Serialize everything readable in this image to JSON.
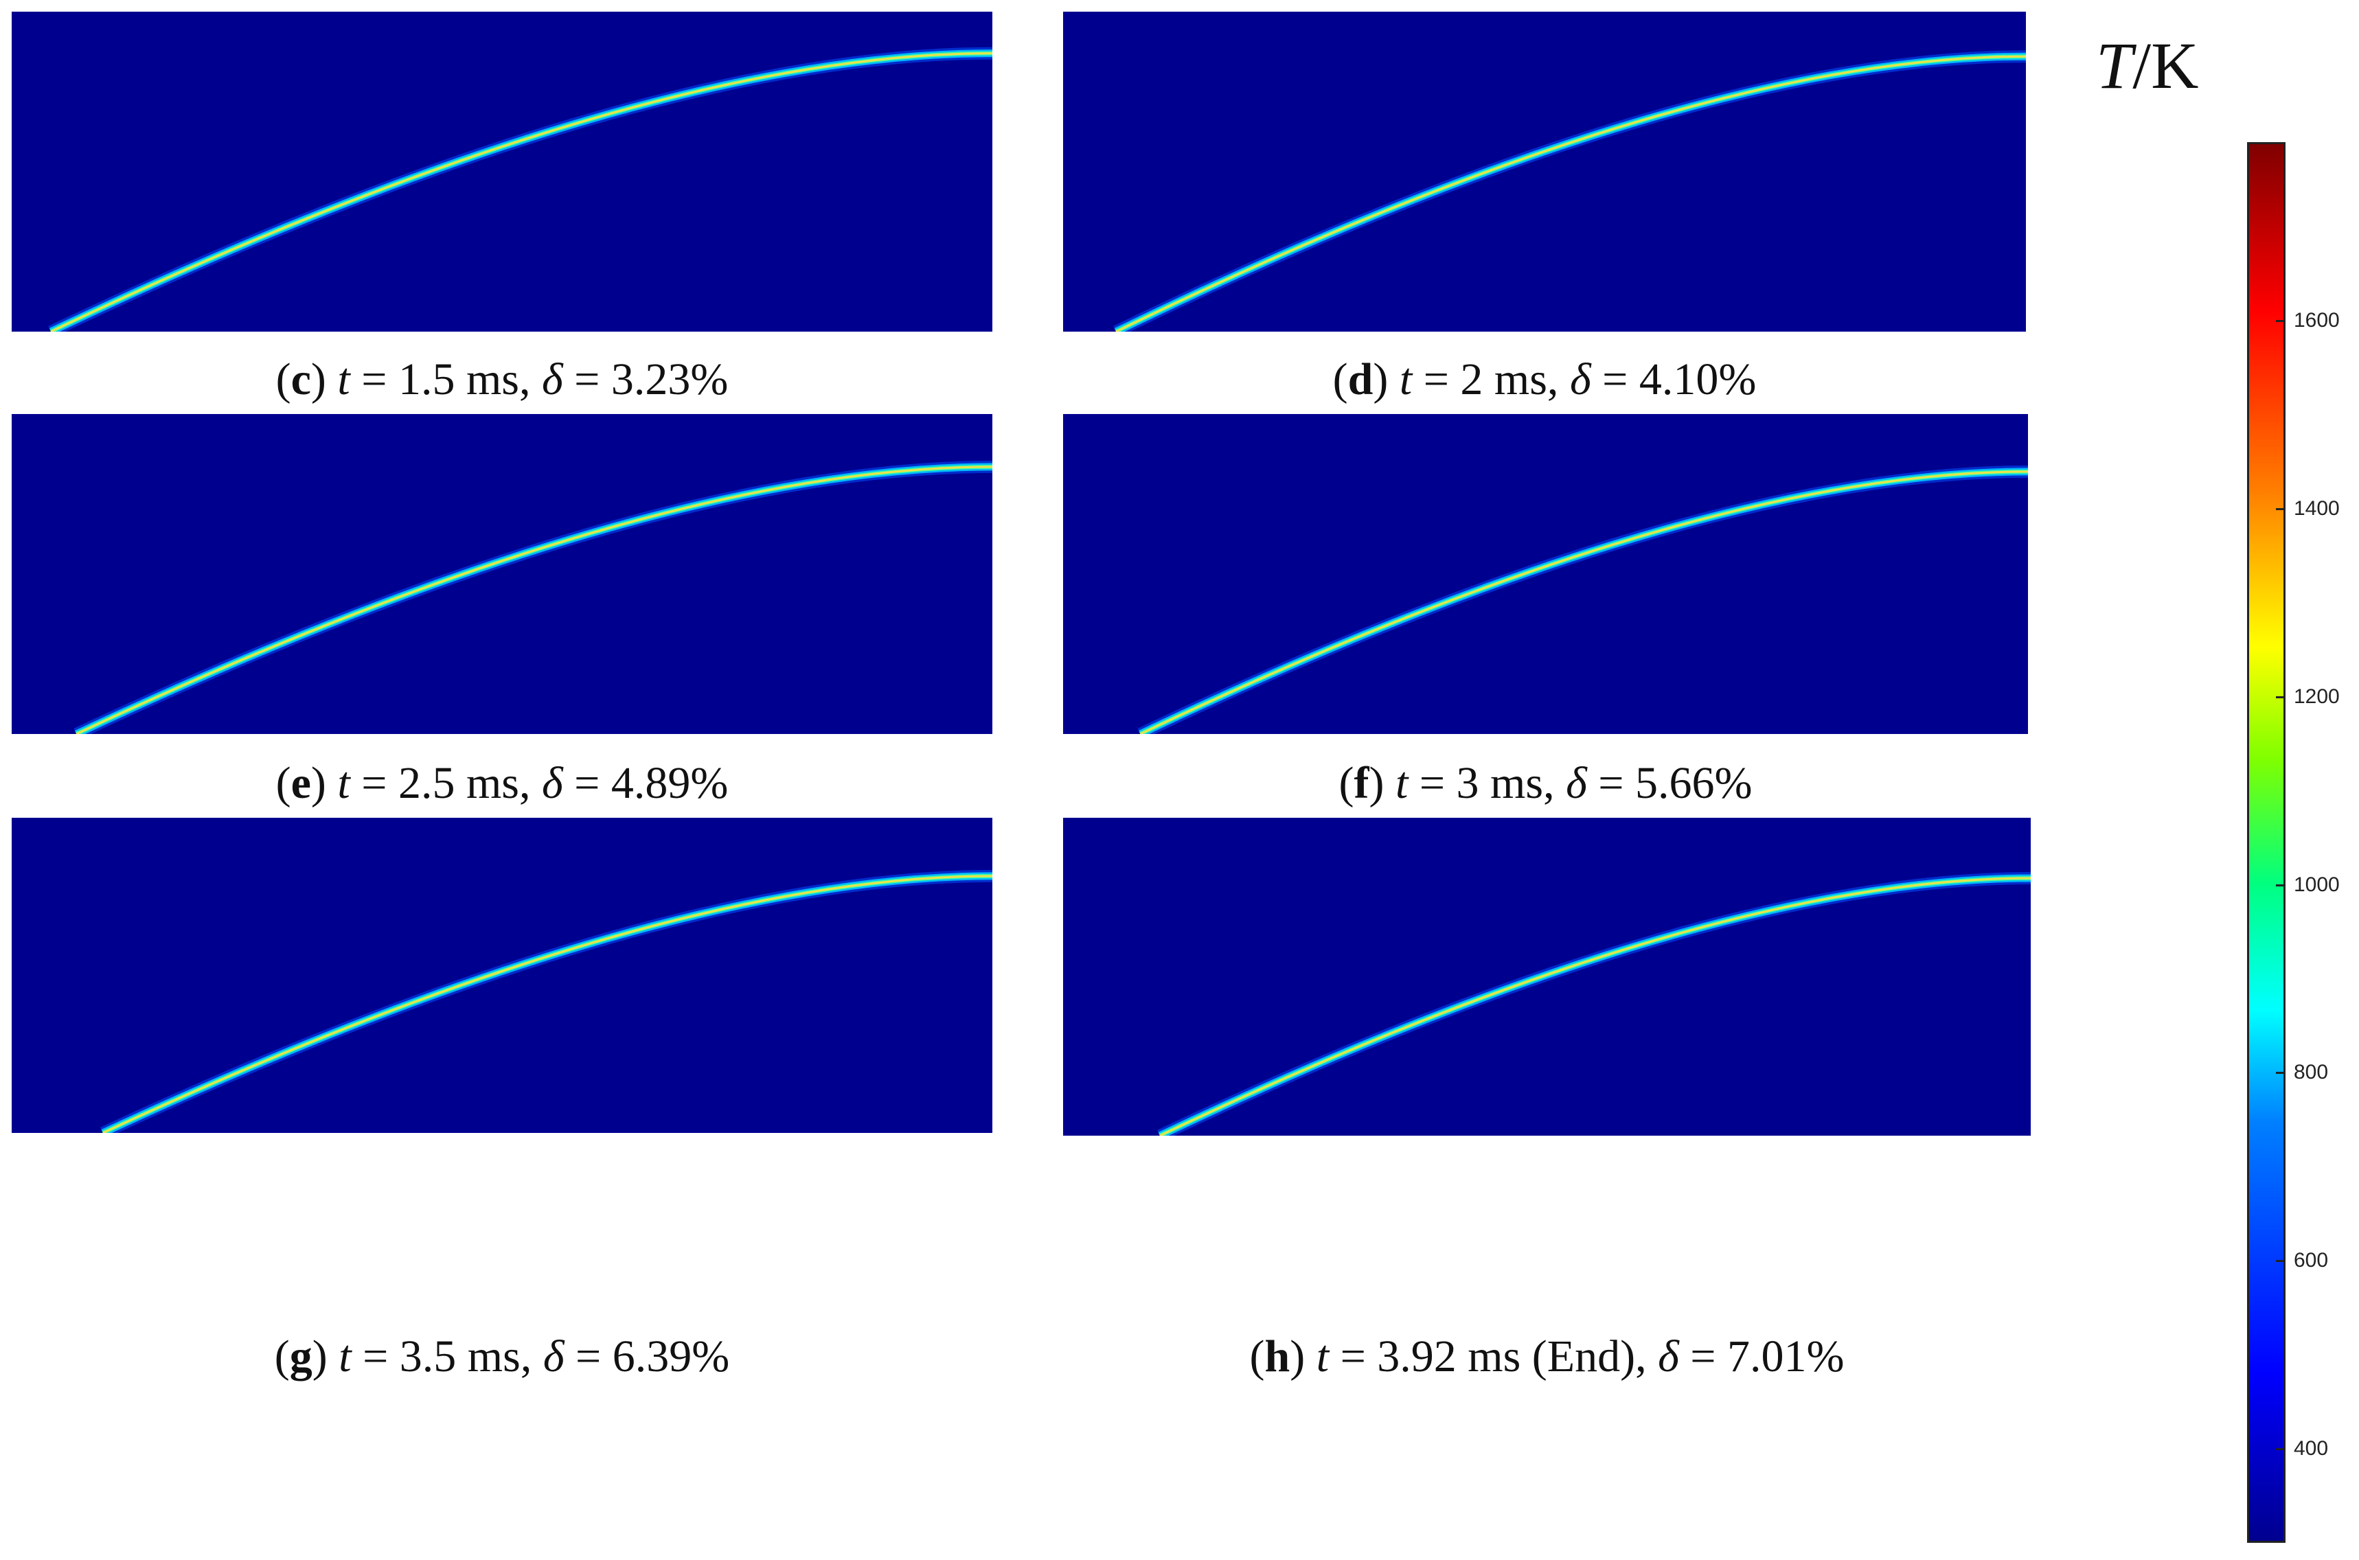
{
  "panels": [
    {
      "id": "c",
      "time_label": "t",
      "time_value": "= 1.5 ms,",
      "delta_symbol": "δ",
      "delta_value": "= 3.23%",
      "front": {
        "start": [
          0.04,
          1.0
        ],
        "end": [
          1.0,
          0.13
        ]
      }
    },
    {
      "id": "d",
      "time_label": "t",
      "time_value": "= 2 ms,",
      "delta_symbol": "δ",
      "delta_value": "= 4.10%",
      "front": {
        "start": [
          0.055,
          1.0
        ],
        "end": [
          1.0,
          0.14
        ]
      }
    },
    {
      "id": "e",
      "time_label": "t",
      "time_value": "= 2.5 ms,",
      "delta_symbol": "δ",
      "delta_value": "= 4.89%",
      "front": {
        "start": [
          0.066,
          1.0
        ],
        "end": [
          1.0,
          0.165
        ]
      }
    },
    {
      "id": "f",
      "time_label": "t",
      "time_value": "= 3 ms,",
      "delta_symbol": "δ",
      "delta_value": "= 5.66%",
      "front": {
        "start": [
          0.08,
          1.0
        ],
        "end": [
          1.0,
          0.18
        ]
      }
    },
    {
      "id": "g",
      "time_label": "t",
      "time_value": "= 3.5 ms,",
      "delta_symbol": "δ",
      "delta_value": "= 6.39%",
      "front": {
        "start": [
          0.093,
          1.0
        ],
        "end": [
          1.0,
          0.185
        ]
      }
    },
    {
      "id": "h",
      "time_label": "t",
      "time_value": "= 3.92 ms (End),",
      "delta_symbol": "δ",
      "delta_value": "= 7.01%",
      "front": {
        "start": [
          0.1,
          1.0
        ],
        "end": [
          1.0,
          0.19
        ]
      }
    }
  ],
  "colorbar": {
    "title_var": "T",
    "title_unit": "/K",
    "min": 300,
    "max": 1790,
    "ticks": [
      "400",
      "600",
      "800",
      "1000",
      "1200",
      "1400",
      "1600"
    ],
    "tick_values": [
      400,
      600,
      800,
      1000,
      1200,
      1400,
      1600
    ],
    "colormap": "jet",
    "background_color": "#00008f"
  }
}
